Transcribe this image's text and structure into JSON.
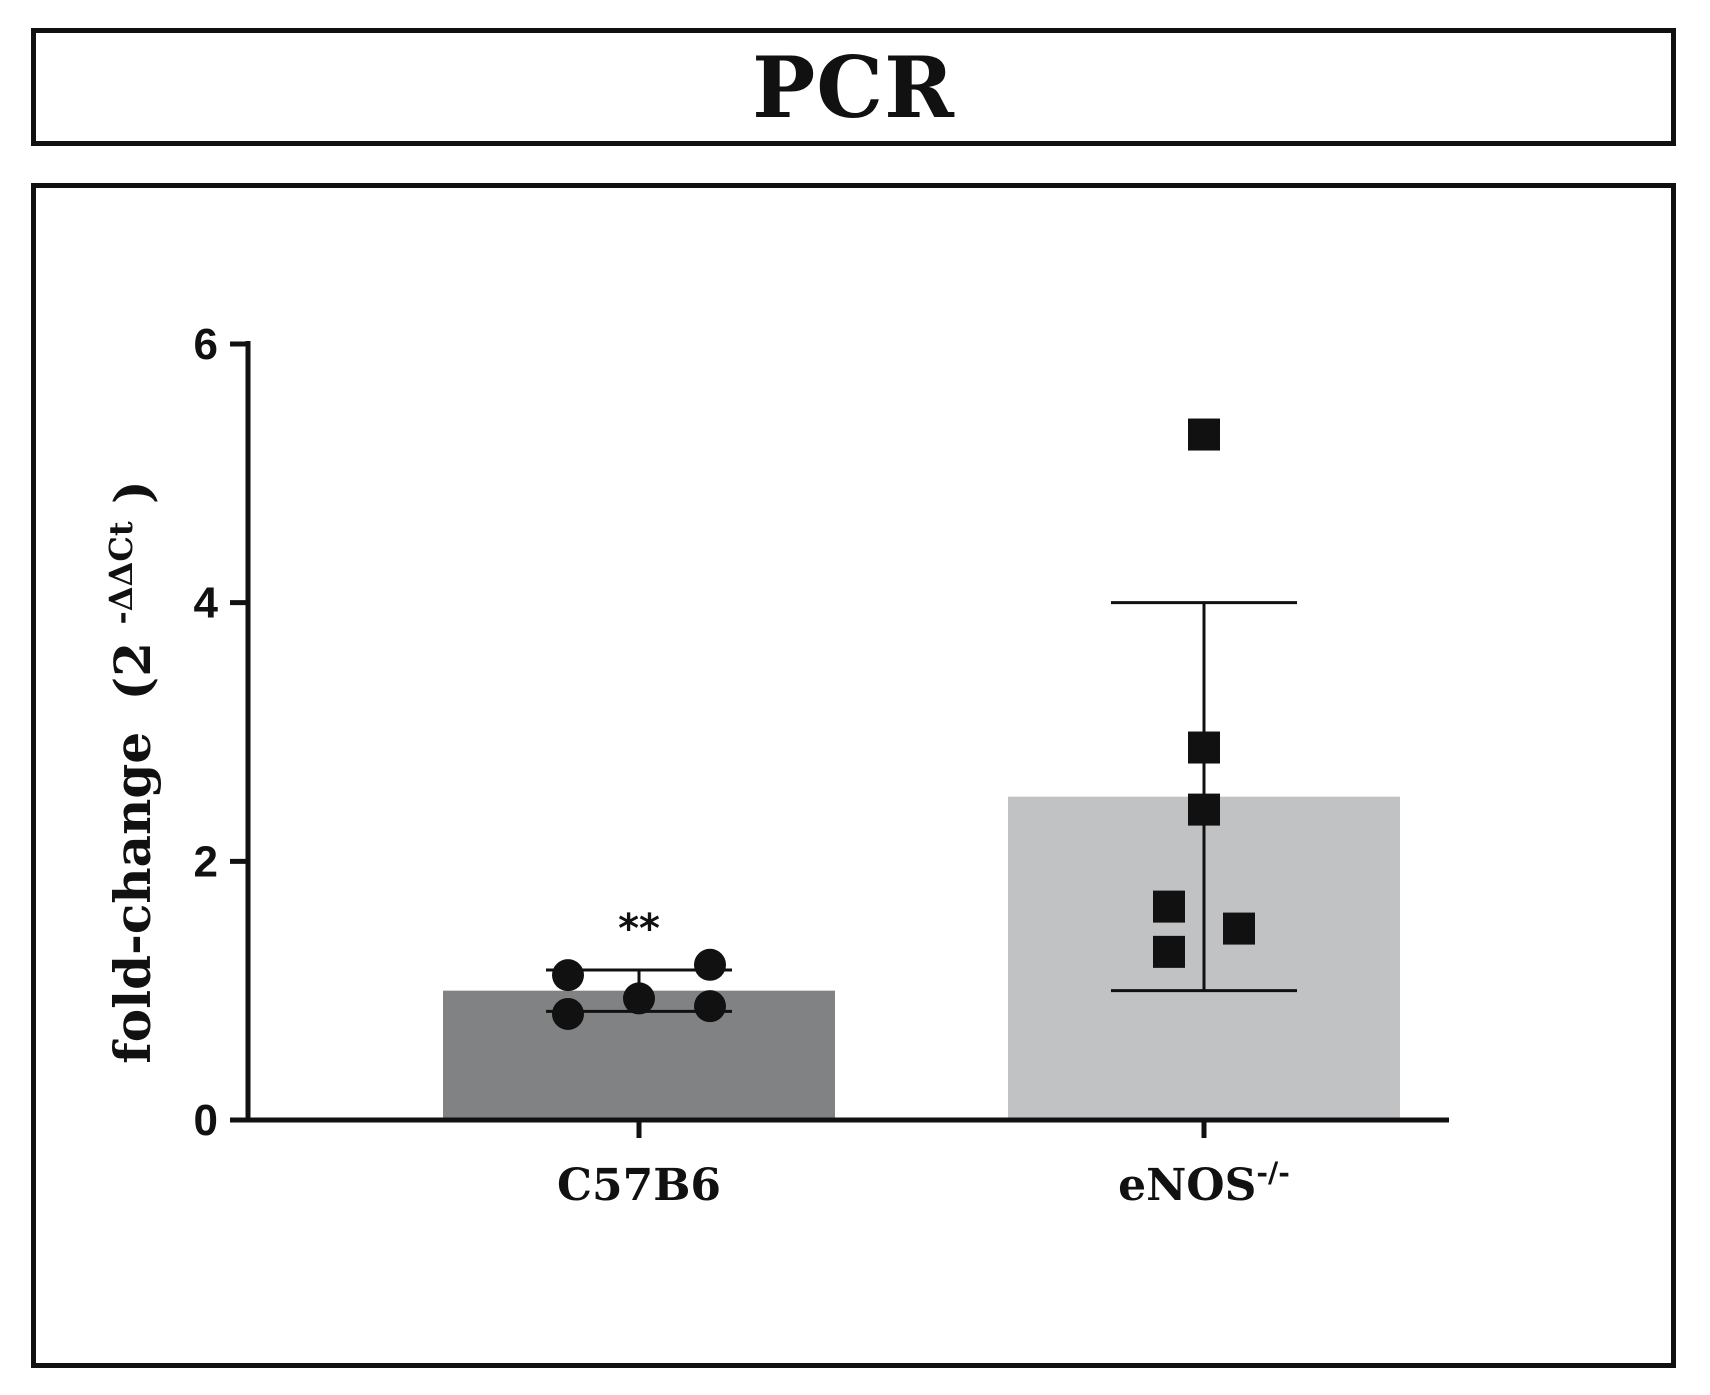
{
  "chart_data": {
    "type": "bar",
    "title": "PCR",
    "ylabel": "fold-change",
    "ylabel_paren_open": "(2",
    "ylabel_sup": "-ΔΔCt",
    "ylabel_paren_close": ")",
    "xlabel": "",
    "ylim": [
      0,
      6
    ],
    "yticks": [
      "0",
      "2",
      "4",
      "6"
    ],
    "categories": [
      {
        "label": "C57B6",
        "sup": ""
      },
      {
        "label": "eNOS",
        "sup": "-/-"
      }
    ],
    "values": [
      1.0,
      2.5
    ],
    "error_low": [
      0.84,
      1.0
    ],
    "error_high": [
      1.16,
      4.0
    ],
    "points": [
      [
        1.12,
        0.82,
        0.94,
        1.2,
        0.88
      ],
      [
        5.3,
        2.88,
        2.4,
        1.65,
        1.48,
        1.3
      ]
    ],
    "marker_shapes": [
      "circle",
      "square"
    ],
    "annotations": [
      {
        "category": 0,
        "text": "**"
      }
    ],
    "colors": {
      "bar_0": "#808284",
      "bar_1": "#c1c2c4",
      "ink": "#111111"
    }
  }
}
